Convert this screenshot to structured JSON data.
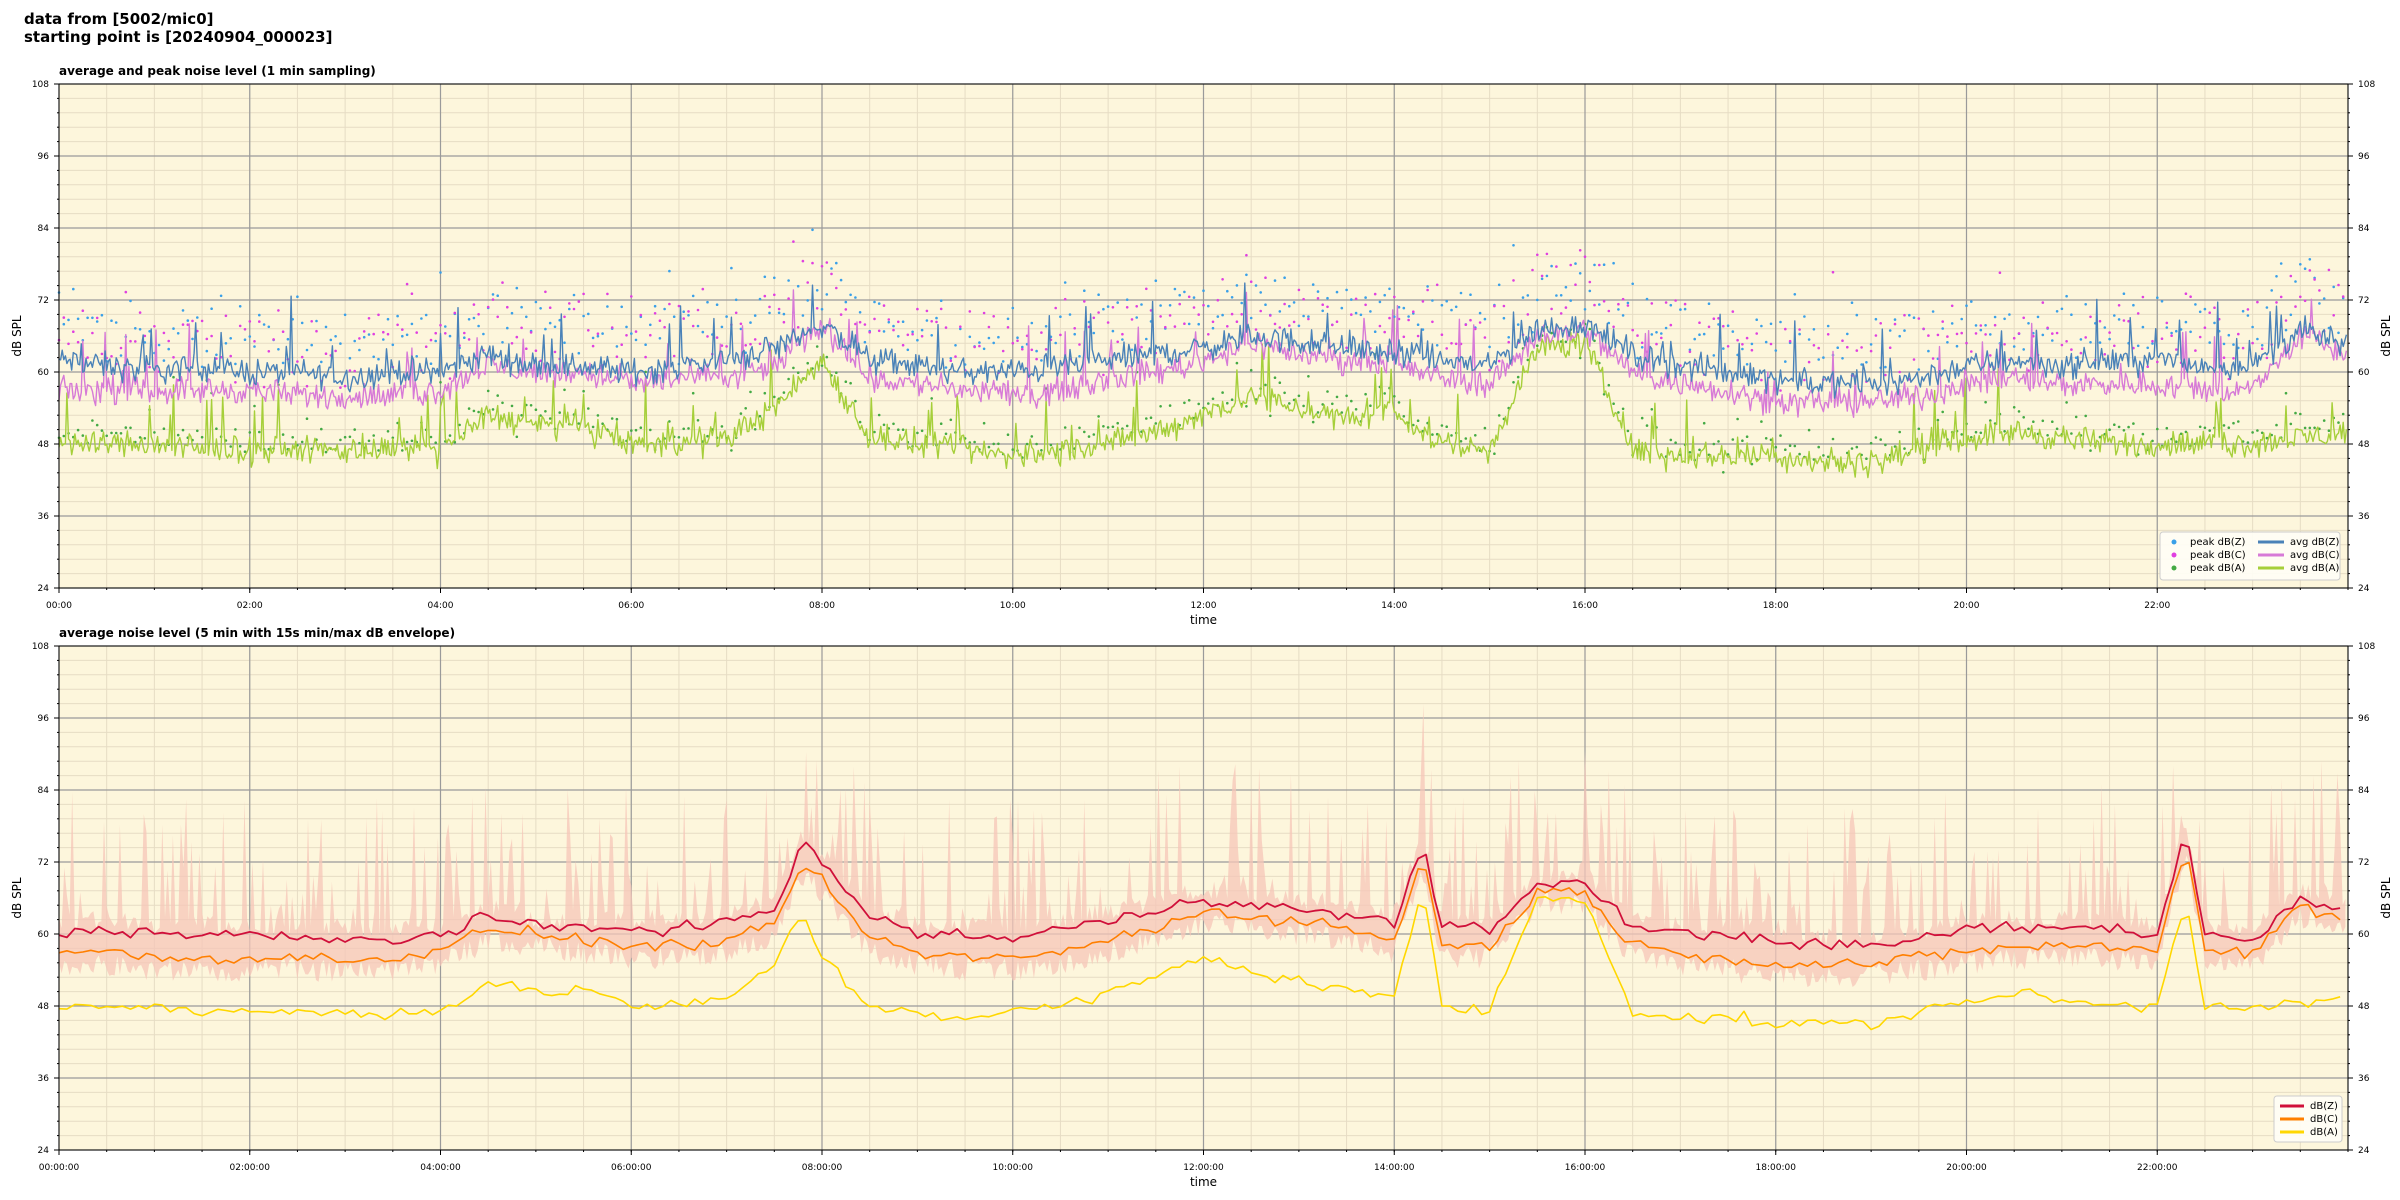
{
  "header": {
    "line1": "data from [5002/mic0]",
    "line2": "starting point is [20240904_000023]"
  },
  "colors": {
    "background": "#fdf6dc",
    "grid_major": "#9a9a9a",
    "grid_minor": "#e6dcc4",
    "peak_z": "#3aa0e8",
    "peak_c": "#e040e0",
    "peak_a": "#44aa44",
    "avg_z": "#4a82b8",
    "avg_c": "#d77ad7",
    "avg_a": "#a6cf3a",
    "env_fill": "#f5c6b8",
    "dbz": "#d0103a",
    "dbc": "#ff7f00",
    "dba": "#ffd700"
  },
  "chart_data": [
    {
      "type": "line",
      "title": "average and peak noise level (1 min sampling)",
      "xlabel": "time",
      "ylabel": "dB SPL",
      "ylim": [
        24,
        108
      ],
      "yticks": [
        "24",
        "36",
        "48",
        "60",
        "72",
        "84",
        "96",
        "108"
      ],
      "xlim_hours": [
        0,
        24
      ],
      "xtick_labels": [
        "00:00",
        "02:00",
        "04:00",
        "06:00",
        "08:00",
        "10:00",
        "12:00",
        "14:00",
        "16:00",
        "18:00",
        "20:00",
        "22:00"
      ],
      "grid": true,
      "legend_position": "bottom-right",
      "legend": [
        "peak dB(Z)",
        "peak dB(C)",
        "peak dB(A)",
        "avg dB(Z)",
        "avg dB(C)",
        "avg dB(A)"
      ],
      "series": [
        {
          "name": "avg dB(Z)",
          "x": [
            0,
            0.5,
            1,
            1.5,
            2,
            2.5,
            3,
            3.5,
            4,
            4.5,
            5,
            5.5,
            6,
            6.5,
            7,
            7.5,
            8,
            8.5,
            9,
            9.5,
            10,
            10.5,
            11,
            11.5,
            12,
            12.5,
            13,
            13.5,
            14,
            14.5,
            15,
            15.5,
            16,
            16.5,
            17,
            17.5,
            18,
            18.5,
            19,
            19.5,
            20,
            20.5,
            21,
            21.5,
            22,
            22.5,
            23,
            23.5,
            24
          ],
          "y": [
            62,
            61,
            60,
            61,
            60,
            60,
            59,
            60,
            60,
            63,
            61,
            61,
            60,
            61,
            62,
            64,
            68,
            62,
            61,
            60,
            60,
            61,
            62,
            63,
            64,
            66,
            65,
            64,
            63,
            62,
            61,
            67,
            68,
            63,
            61,
            60,
            59,
            58,
            58,
            59,
            61,
            62,
            61,
            62,
            62,
            61,
            61,
            67,
            64
          ]
        },
        {
          "name": "avg dB(C)",
          "x": [
            0,
            0.5,
            1,
            1.5,
            2,
            2.5,
            3,
            3.5,
            4,
            4.5,
            5,
            5.5,
            6,
            6.5,
            7,
            7.5,
            8,
            8.5,
            9,
            9.5,
            10,
            10.5,
            11,
            11.5,
            12,
            12.5,
            13,
            13.5,
            14,
            14.5,
            15,
            15.5,
            16,
            16.5,
            17,
            17.5,
            18,
            18.5,
            19,
            19.5,
            20,
            20.5,
            21,
            21.5,
            22,
            22.5,
            23,
            23.5,
            24
          ],
          "y": [
            57,
            57,
            57,
            57,
            57,
            56,
            56,
            56,
            57,
            61,
            60,
            60,
            58,
            59,
            59,
            61,
            68,
            59,
            58,
            57,
            56,
            57,
            59,
            60,
            62,
            65,
            63,
            62,
            61,
            59,
            58,
            66,
            67,
            60,
            58,
            57,
            55,
            55,
            55,
            56,
            58,
            59,
            58,
            58,
            58,
            57,
            57,
            66,
            63
          ]
        },
        {
          "name": "avg dB(A)",
          "x": [
            0,
            0.5,
            1,
            1.5,
            2,
            2.5,
            3,
            3.5,
            4,
            4.5,
            5,
            5.5,
            6,
            6.5,
            7,
            7.5,
            8,
            8.5,
            9,
            9.5,
            10,
            10.5,
            11,
            11.5,
            12,
            12.5,
            13,
            13.5,
            14,
            14.5,
            15,
            15.5,
            16,
            16.5,
            17,
            17.5,
            18,
            18.5,
            19,
            19.5,
            20,
            20.5,
            21,
            21.5,
            22,
            22.5,
            23,
            23.5,
            24
          ],
          "y": [
            48,
            48,
            48,
            47,
            47,
            47,
            47,
            47,
            47,
            53,
            51,
            51,
            48,
            48,
            49,
            54,
            62,
            49,
            48,
            47,
            46,
            47,
            48,
            50,
            53,
            56,
            54,
            52,
            53,
            48,
            47,
            64,
            65,
            47,
            46,
            46,
            46,
            45,
            45,
            47,
            49,
            50,
            49,
            48,
            48,
            48,
            48,
            49,
            50
          ]
        }
      ],
      "peak_series": [
        {
          "name": "peak dB(Z)",
          "offset_db": 8
        },
        {
          "name": "peak dB(C)",
          "offset_db": 10
        },
        {
          "name": "peak dB(A)",
          "offset_db": 2
        }
      ]
    },
    {
      "type": "line",
      "title": "average noise level (5 min with 15s min/max dB envelope)",
      "xlabel": "time",
      "ylabel": "dB SPL",
      "ylim": [
        24,
        108
      ],
      "yticks": [
        "24",
        "36",
        "48",
        "60",
        "72",
        "84",
        "96",
        "108"
      ],
      "xlim_hours": [
        0,
        24
      ],
      "xtick_labels": [
        "00:00:00",
        "02:00:00",
        "04:00:00",
        "06:00:00",
        "08:00:00",
        "10:00:00",
        "12:00:00",
        "14:00:00",
        "16:00:00",
        "18:00:00",
        "20:00:00",
        "22:00:00"
      ],
      "grid": true,
      "legend_position": "bottom-right",
      "legend": [
        "dB(Z)",
        "dB(C)",
        "dB(A)"
      ],
      "series": [
        {
          "name": "dB(Z)",
          "x": [
            0,
            0.5,
            1,
            1.5,
            2,
            2.5,
            3,
            3.5,
            4,
            4.5,
            5,
            5.5,
            6,
            6.5,
            7,
            7.5,
            7.8,
            8,
            8.5,
            9,
            9.5,
            10,
            10.5,
            11,
            11.5,
            12,
            12.5,
            13,
            13.5,
            14,
            14.3,
            14.5,
            15,
            15.5,
            16,
            16.5,
            17,
            17.5,
            18,
            18.5,
            19,
            19.5,
            20,
            20.5,
            21,
            21.5,
            22,
            22.3,
            22.5,
            23,
            23.5,
            24
          ],
          "y": [
            60,
            61,
            60,
            60,
            60,
            59,
            59,
            59,
            60,
            63,
            61,
            61,
            61,
            61,
            62,
            64,
            75,
            72,
            63,
            60,
            60,
            59,
            61,
            62,
            64,
            66,
            65,
            64,
            63,
            62,
            75,
            61,
            61,
            68,
            69,
            61,
            60,
            60,
            59,
            58,
            58,
            59,
            61,
            61,
            61,
            61,
            60,
            77,
            60,
            59,
            66,
            64
          ]
        },
        {
          "name": "dB(C)",
          "x": [
            0,
            0.5,
            1,
            1.5,
            2,
            2.5,
            3,
            3.5,
            4,
            4.5,
            5,
            5.5,
            6,
            6.5,
            7,
            7.5,
            7.8,
            8,
            8.5,
            9,
            9.5,
            10,
            10.5,
            11,
            11.5,
            12,
            12.5,
            13,
            13.5,
            14,
            14.3,
            14.5,
            15,
            15.5,
            16,
            16.5,
            17,
            17.5,
            18,
            18.5,
            19,
            19.5,
            20,
            20.5,
            21,
            21.5,
            22,
            22.3,
            22.5,
            23,
            23.5,
            24
          ],
          "y": [
            57,
            57,
            56,
            56,
            56,
            56,
            56,
            56,
            57,
            61,
            60,
            59,
            58,
            58,
            59,
            61,
            72,
            69,
            59,
            57,
            56,
            56,
            57,
            59,
            61,
            64,
            63,
            62,
            61,
            59,
            73,
            58,
            58,
            67,
            67,
            58,
            57,
            56,
            55,
            55,
            55,
            56,
            57,
            58,
            58,
            58,
            57,
            75,
            57,
            57,
            65,
            62
          ]
        },
        {
          "name": "dB(A)",
          "x": [
            0,
            0.5,
            1,
            1.5,
            2,
            2.5,
            3,
            3.5,
            4,
            4.5,
            5,
            5.5,
            6,
            6.5,
            7,
            7.5,
            7.8,
            8,
            8.5,
            9,
            9.5,
            10,
            10.5,
            11,
            11.5,
            12,
            12.5,
            13,
            13.5,
            14,
            14.3,
            14.5,
            15,
            15.5,
            16,
            16.5,
            17,
            17.5,
            18,
            18.5,
            19,
            19.5,
            20,
            20.5,
            21,
            21.5,
            22,
            22.3,
            22.5,
            23,
            23.5,
            24
          ],
          "y": [
            48,
            48,
            48,
            47,
            47,
            47,
            47,
            47,
            47,
            52,
            50,
            51,
            48,
            48,
            49,
            55,
            64,
            56,
            48,
            47,
            46,
            47,
            48,
            50,
            53,
            56,
            54,
            52,
            51,
            49,
            68,
            48,
            47,
            66,
            66,
            47,
            46,
            46,
            45,
            45,
            45,
            47,
            49,
            50,
            49,
            48,
            48,
            66,
            48,
            48,
            49,
            49
          ]
        }
      ],
      "envelope": {
        "name": "15s min/max dB envelope",
        "low_offset_db": -4,
        "high_offset_db": 12
      }
    }
  ]
}
